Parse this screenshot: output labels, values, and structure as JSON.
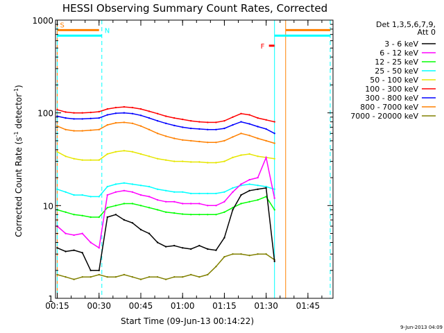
{
  "chart_data": {
    "type": "line",
    "title": "HESSI Observing Summary Count Rates, Corrected",
    "xlabel": "Start Time (09-Jun-13 00:14:22)",
    "ylabel": "Corrected Count Rate (s⁻¹ detector⁻¹)",
    "ylabel_main": "Corrected Count Rate (s",
    "ylabel_sup1": "-1",
    "ylabel_mid": " detector",
    "ylabel_sup2": "-1",
    "ylabel_end": ")",
    "yscale": "log",
    "ylim": [
      1,
      1000
    ],
    "xlim": [
      "00:14:22",
      "01:54:00"
    ],
    "x_ticks": [
      "00:15",
      "00:30",
      "00:45",
      "01:00",
      "01:15",
      "01:30",
      "01:45"
    ],
    "y_ticks": [
      "1",
      "10",
      "100",
      "1000"
    ],
    "date_stamp": "9-Jun-2013 04:09",
    "legend_header": [
      "Det 1,3,5,6,7,9,",
      "Att 0"
    ],
    "legend_position": "right",
    "x_minutes": [
      15,
      18,
      21,
      24,
      27,
      30,
      33,
      36,
      39,
      42,
      45,
      48,
      51,
      54,
      57,
      60,
      63,
      66,
      69,
      72,
      75,
      78,
      81,
      84,
      87,
      90,
      93
    ],
    "series": [
      {
        "name": "3 - 6 keV",
        "color": "#000000",
        "values": [
          3.5,
          3.2,
          3.3,
          3.1,
          2.0,
          2.0,
          7.5,
          8.0,
          7.0,
          6.5,
          5.5,
          5.0,
          4.0,
          3.6,
          3.7,
          3.5,
          3.4,
          3.7,
          3.4,
          3.3,
          4.5,
          9.0,
          13.0,
          14.5,
          15.0,
          15.5,
          2.5
        ]
      },
      {
        "name": "6 - 12 keV",
        "color": "#ff00ff",
        "values": [
          6.0,
          5.0,
          4.8,
          5.0,
          4.0,
          3.5,
          13.0,
          14.0,
          14.5,
          14.0,
          13.0,
          12.5,
          11.5,
          11.0,
          11.0,
          10.5,
          10.5,
          10.5,
          10.0,
          10.0,
          11.0,
          14.0,
          17.0,
          19.0,
          20.0,
          33.0,
          12.0
        ]
      },
      {
        "name": "12 - 25 keV",
        "color": "#00ff00",
        "values": [
          9.0,
          8.5,
          8.0,
          7.8,
          7.5,
          7.5,
          9.5,
          10.0,
          10.5,
          10.5,
          10.0,
          9.5,
          9.0,
          8.5,
          8.3,
          8.1,
          8.0,
          8.0,
          8.0,
          8.0,
          8.5,
          9.5,
          10.5,
          11.0,
          11.5,
          12.5,
          9.0
        ]
      },
      {
        "name": "25 - 50 keV",
        "color": "#00ffff",
        "values": [
          15.0,
          14.0,
          13.0,
          13.0,
          12.5,
          12.5,
          16.0,
          17.0,
          17.5,
          17.0,
          16.5,
          16.0,
          15.0,
          14.5,
          14.0,
          14.0,
          13.5,
          13.5,
          13.5,
          13.5,
          14.0,
          15.5,
          16.5,
          17.0,
          16.5,
          16.0,
          15.0
        ]
      },
      {
        "name": "50 - 100 keV",
        "color": "#e6e600",
        "values": [
          38.0,
          34.0,
          32.0,
          31.0,
          31.0,
          31.0,
          36.0,
          38.0,
          39.0,
          38.0,
          36.0,
          34.0,
          32.0,
          31.0,
          30.0,
          30.0,
          29.5,
          29.5,
          29.0,
          29.0,
          30.0,
          33.0,
          35.0,
          36.0,
          34.0,
          33.0,
          32.0
        ]
      },
      {
        "name": "100 - 300 keV",
        "color": "#ff0000",
        "values": [
          108.0,
          102.0,
          100.0,
          100.0,
          101.0,
          103.0,
          110.0,
          114.0,
          116.0,
          114.0,
          110.0,
          104.0,
          98.0,
          92.0,
          88.0,
          85.0,
          82.0,
          80.0,
          79.0,
          79.0,
          82.0,
          90.0,
          98.0,
          95.0,
          88.0,
          84.0,
          80.0
        ]
      },
      {
        "name": "300 - 800 keV",
        "color": "#0000ff",
        "values": [
          92.0,
          88.0,
          86.0,
          86.0,
          87.0,
          88.0,
          95.0,
          99.0,
          100.0,
          98.0,
          94.0,
          88.0,
          82.0,
          77.0,
          73.0,
          70.0,
          68.0,
          67.0,
          66.0,
          66.0,
          68.0,
          74.0,
          80.0,
          76.0,
          71.0,
          67.0,
          60.0
        ]
      },
      {
        "name": "800 - 7000 keV",
        "color": "#ff8000",
        "values": [
          72.0,
          66.0,
          64.0,
          64.0,
          65.0,
          66.0,
          74.0,
          78.0,
          79.0,
          77.0,
          72.0,
          66.0,
          60.0,
          56.0,
          53.0,
          51.0,
          50.0,
          49.0,
          48.0,
          48.0,
          50.0,
          55.0,
          60.0,
          57.0,
          53.0,
          50.0,
          47.0
        ]
      },
      {
        "name": "7000 - 20000 keV",
        "color": "#808000",
        "values": [
          1.8,
          1.7,
          1.6,
          1.7,
          1.7,
          1.8,
          1.7,
          1.7,
          1.8,
          1.7,
          1.6,
          1.7,
          1.7,
          1.6,
          1.7,
          1.7,
          1.8,
          1.7,
          1.8,
          2.2,
          2.8,
          3.0,
          3.0,
          2.9,
          3.0,
          3.0,
          2.6
        ]
      }
    ],
    "annotations": [
      {
        "label": "S",
        "color": "#ff8000",
        "x_start": "00:15",
        "x_end": "00:30",
        "level": 780
      },
      {
        "label": "N",
        "color": "#00ffff",
        "x_start": "00:15",
        "x_end": "00:31",
        "level": 680
      },
      {
        "label": "F",
        "color": "#ff0000",
        "x_start": "01:31",
        "x_end": "01:33",
        "level": 530
      },
      {
        "label": "",
        "color": "#ff8000",
        "x_start": "01:37",
        "x_end": "01:53",
        "level": 780
      },
      {
        "label": "",
        "color": "#00ffff",
        "x_start": "01:33",
        "x_end": "01:53",
        "level": 680
      }
    ],
    "vlines": [
      {
        "x": "00:15",
        "color": "#ff8000",
        "style": "solid"
      },
      {
        "x": "00:15",
        "color": "#00ffff",
        "style": "dashed"
      },
      {
        "x": "00:31",
        "color": "#00ffff",
        "style": "dashed"
      },
      {
        "x": "01:33",
        "color": "#00ffff",
        "style": "solid"
      },
      {
        "x": "01:37",
        "color": "#ff8000",
        "style": "solid"
      },
      {
        "x": "01:53",
        "color": "#00ffff",
        "style": "dashed"
      }
    ]
  }
}
